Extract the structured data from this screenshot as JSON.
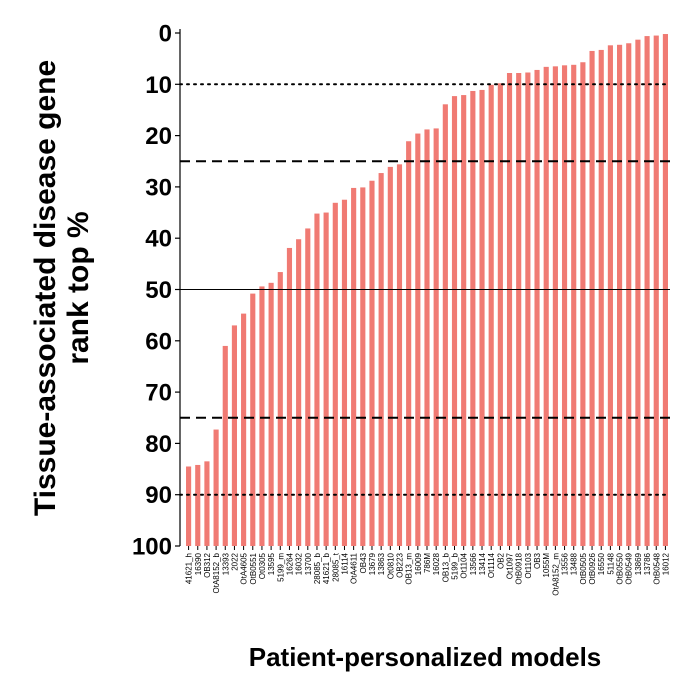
{
  "chart_data": {
    "type": "bar",
    "title": "",
    "xlabel": "Patient-personalized models",
    "ylabel_lines": [
      "Tissue-associated disease gene",
      "rank top %"
    ],
    "y_reversed": true,
    "ylim": [
      0,
      100
    ],
    "yticks": [
      0,
      10,
      20,
      30,
      40,
      50,
      60,
      70,
      80,
      90,
      100
    ],
    "bar_color": "#f07a73",
    "reference_lines": [
      {
        "y": 10,
        "style": "dotted"
      },
      {
        "y": 25,
        "style": "dashed"
      },
      {
        "y": 50,
        "style": "solid"
      },
      {
        "y": 75,
        "style": "dashed"
      },
      {
        "y": 90,
        "style": "dotted"
      }
    ],
    "categories": [
      "41621_h",
      "16390",
      "OB312",
      "OtA8152_b",
      "13393",
      "2022",
      "OtA4605",
      "OtB0551",
      "Ot0305",
      "13595",
      "5199_m",
      "16264",
      "16032",
      "13700",
      "28085_b",
      "41621_b",
      "28085_t",
      "16114",
      "OtA4611",
      "OB43",
      "13679",
      "13863",
      "Ot0810",
      "OB223",
      "OB13_m",
      "16009",
      "786M",
      "16028",
      "OB13_b",
      "5199_b",
      "Ot1104",
      "13566",
      "13414",
      "Ot1114",
      "OB2",
      "Ot1097",
      "OtB0918",
      "Ot1103",
      "OB3",
      "1055M",
      "OtA8152_m",
      "13556",
      "13488",
      "OtB0505",
      "OtB0926",
      "16550",
      "51148",
      "OtB0550",
      "OtB0549",
      "13869",
      "13786",
      "OtB0548",
      "16012"
    ],
    "values": [
      84.5,
      84.2,
      83.5,
      77.3,
      61.0,
      57.0,
      54.7,
      50.8,
      49.4,
      48.7,
      46.6,
      41.9,
      40.2,
      38.1,
      35.2,
      35.0,
      33.1,
      32.5,
      30.2,
      30.1,
      28.8,
      27.3,
      26.1,
      25.6,
      21.1,
      19.6,
      18.8,
      18.6,
      13.9,
      12.3,
      12.1,
      11.3,
      11.1,
      10.1,
      9.8,
      7.8,
      7.8,
      7.7,
      7.2,
      6.6,
      6.5,
      6.3,
      6.2,
      5.7,
      3.5,
      3.3,
      2.4,
      2.3,
      2.0,
      1.3,
      0.6,
      0.5,
      0.2
    ],
    "grid": false,
    "legend": "none"
  }
}
